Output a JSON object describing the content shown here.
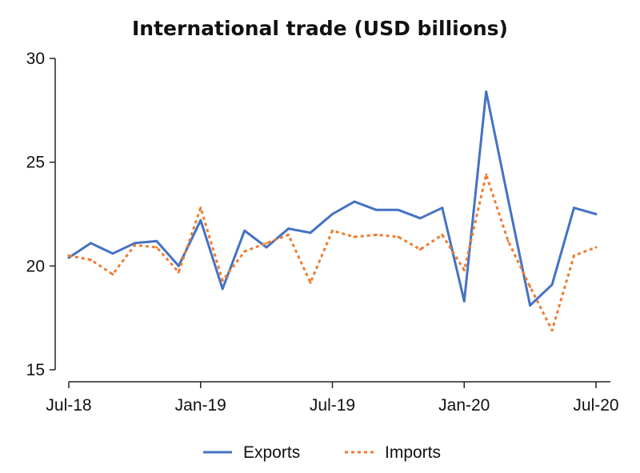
{
  "chart_data": {
    "type": "line",
    "title": "International trade (USD billions)",
    "x_tick_labels": [
      "Jul-18",
      "Jan-19",
      "Jul-19",
      "Jan-20",
      "Jul-20"
    ],
    "x_tick_index": [
      0,
      6,
      12,
      18,
      24
    ],
    "x": [
      "Jul-18",
      "Aug-18",
      "Sep-18",
      "Oct-18",
      "Nov-18",
      "Dec-18",
      "Jan-19",
      "Feb-19",
      "Mar-19",
      "Apr-19",
      "May-19",
      "Jun-19",
      "Jul-19",
      "Aug-19",
      "Sep-19",
      "Oct-19",
      "Nov-19",
      "Dec-19",
      "Jan-20",
      "Feb-20",
      "Mar-20",
      "Apr-20",
      "May-20",
      "Jun-20",
      "Jul-20"
    ],
    "ylim": [
      15,
      30
    ],
    "y_ticks": [
      15,
      20,
      25,
      30
    ],
    "grid": false,
    "legend_position": "bottom",
    "series": [
      {
        "name": "Exports",
        "color": "#4472c4",
        "style": "solid",
        "values": [
          20.4,
          21.1,
          20.6,
          21.1,
          21.2,
          20.0,
          22.2,
          18.9,
          21.7,
          20.9,
          21.8,
          21.6,
          22.5,
          23.1,
          22.7,
          22.7,
          22.3,
          22.8,
          18.3,
          28.4,
          23.2,
          18.1,
          19.1,
          22.8,
          22.5
        ]
      },
      {
        "name": "Imports",
        "color": "#ed7d31",
        "style": "dotted",
        "values": [
          20.5,
          20.3,
          19.6,
          21.0,
          20.9,
          19.7,
          22.8,
          19.3,
          20.7,
          21.1,
          21.5,
          19.2,
          21.7,
          21.4,
          21.5,
          21.4,
          20.8,
          21.5,
          19.8,
          24.4,
          21.2,
          19.0,
          16.9,
          20.5,
          20.9
        ]
      }
    ]
  }
}
